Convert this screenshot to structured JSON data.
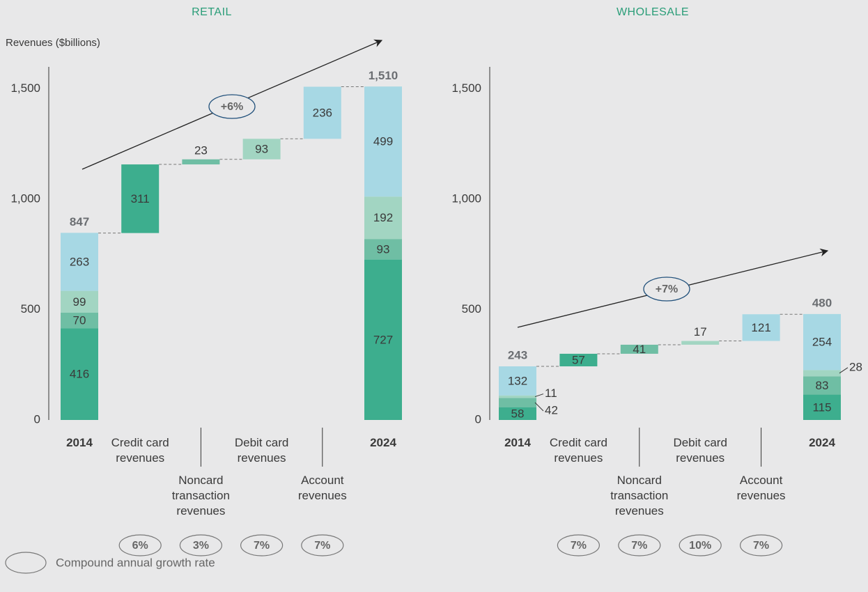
{
  "cagr_legend": "Compound annual growth rate",
  "chart_data": [
    {
      "type": "waterfall",
      "title": "RETAIL",
      "ylabel": "Revenues ($billions)",
      "ylim": [
        0,
        1600
      ],
      "yticks": [
        0,
        500,
        {
          "value": 1000,
          "label": "1,000"
        },
        {
          "value": 1500,
          "label": "1,500"
        }
      ],
      "categories": [
        "2014",
        "Credit card revenues",
        "Noncard transaction revenues",
        "Debit card revenues",
        "Account revenues",
        "2024"
      ],
      "colors": [
        "#3dae8e",
        "#6fbea4",
        "#a2d5c2",
        "#a7d8e4"
      ],
      "start": {
        "values": [
          416,
          70,
          99,
          263
        ],
        "total": 847
      },
      "steps": [
        311,
        23,
        93,
        236
      ],
      "end": {
        "values": [
          727,
          93,
          192,
          499
        ],
        "total": 1510,
        "total_label": "1,510"
      },
      "cagr": {
        "values": [
          6,
          3,
          7,
          7
        ],
        "value_labels": [
          "6%",
          "3%",
          "7%",
          "7%"
        ]
      },
      "overall_cagr": {
        "value": 6,
        "label": "+6%"
      }
    },
    {
      "type": "waterfall",
      "title": "WHOLESALE",
      "ylim": [
        0,
        1600
      ],
      "yticks": [
        0,
        500,
        {
          "value": 1000,
          "label": "1,000"
        },
        {
          "value": 1500,
          "label": "1,500"
        }
      ],
      "categories": [
        "2014",
        "Credit card revenues",
        "Noncard transaction revenues",
        "Debit card revenues",
        "Account revenues",
        "2024"
      ],
      "colors": [
        "#3dae8e",
        "#6fbea4",
        "#a2d5c2",
        "#a7d8e4"
      ],
      "start": {
        "values": [
          58,
          42,
          11,
          132
        ],
        "total": 243
      },
      "steps": [
        57,
        41,
        17,
        121
      ],
      "end": {
        "values": [
          115,
          83,
          28,
          254
        ],
        "total": 480
      },
      "cagr": {
        "values": [
          7,
          7,
          10,
          7
        ],
        "value_labels": [
          "7%",
          "7%",
          "10%",
          "7%"
        ]
      },
      "overall_cagr": {
        "value": 7,
        "label": "+7%"
      }
    }
  ]
}
